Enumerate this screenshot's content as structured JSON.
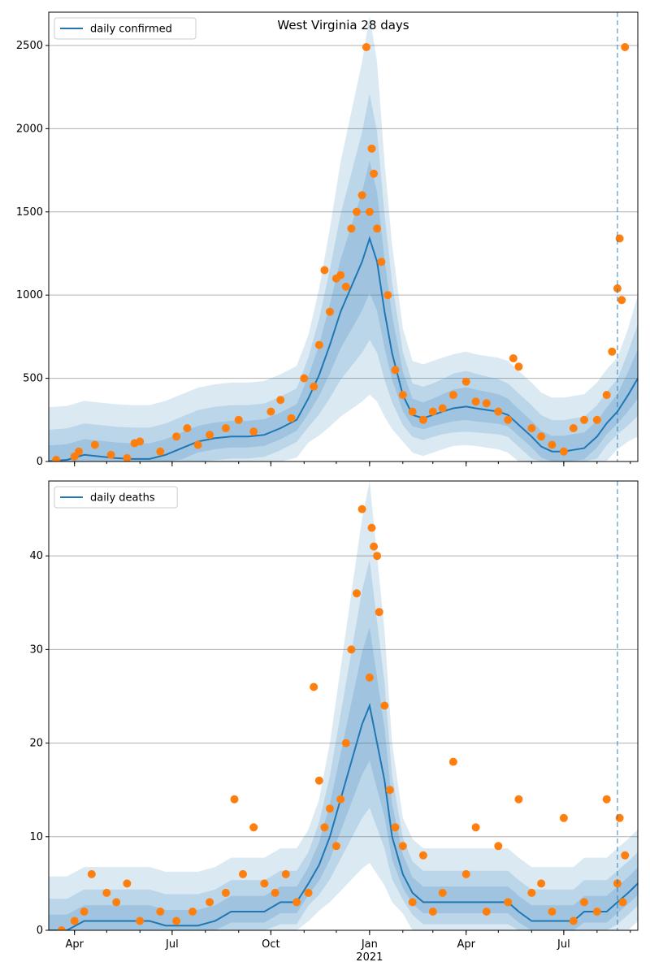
{
  "chart_data": [
    {
      "type": "line",
      "title": "West Virginia 28 days",
      "legend": {
        "labels": [
          "daily confirmed"
        ],
        "placement": "top-left"
      },
      "x_axis": {
        "start": "2020-03-08",
        "end": "2021-09-08",
        "ticks": [
          {
            "date": "2020-04-01",
            "label": "Apr"
          },
          {
            "date": "2020-07-01",
            "label": "Jul"
          },
          {
            "date": "2020-10-01",
            "label": "Oct"
          },
          {
            "date": "2021-01-01",
            "label": "Jan"
          },
          {
            "date": "2021-04-01",
            "label": "Apr"
          },
          {
            "date": "2021-07-01",
            "label": "Jul"
          }
        ]
      },
      "ylim": [
        0,
        2700
      ],
      "yticks": [
        0,
        500,
        1000,
        1500,
        2000,
        2500
      ],
      "grid": "horizontal",
      "forecast_start": "2021-08-20",
      "series": [
        {
          "name": "daily confirmed",
          "style": "line",
          "color": "#1f77b4",
          "x": [
            "2020-03-08",
            "2020-03-25",
            "2020-04-10",
            "2020-04-25",
            "2020-05-10",
            "2020-05-25",
            "2020-06-10",
            "2020-06-25",
            "2020-07-10",
            "2020-07-25",
            "2020-08-10",
            "2020-08-25",
            "2020-09-10",
            "2020-09-25",
            "2020-10-10",
            "2020-10-25",
            "2020-11-05",
            "2020-11-15",
            "2020-11-25",
            "2020-12-05",
            "2020-12-15",
            "2020-12-25",
            "2021-01-01",
            "2021-01-08",
            "2021-01-15",
            "2021-01-22",
            "2021-02-01",
            "2021-02-10",
            "2021-02-20",
            "2021-03-01",
            "2021-03-10",
            "2021-03-20",
            "2021-04-01",
            "2021-04-10",
            "2021-04-20",
            "2021-05-01",
            "2021-05-10",
            "2021-05-20",
            "2021-06-01",
            "2021-06-10",
            "2021-06-20",
            "2021-07-01",
            "2021-07-10",
            "2021-07-20",
            "2021-08-01",
            "2021-08-10",
            "2021-08-20",
            "2021-08-30",
            "2021-09-08"
          ],
          "y": [
            2,
            10,
            40,
            30,
            20,
            15,
            15,
            40,
            80,
            120,
            140,
            150,
            150,
            160,
            200,
            250,
            380,
            520,
            700,
            900,
            1050,
            1200,
            1340,
            1200,
            900,
            650,
            400,
            280,
            260,
            280,
            300,
            320,
            330,
            320,
            310,
            300,
            280,
            220,
            150,
            90,
            60,
            60,
            70,
            80,
            150,
            230,
            300,
            400,
            500
          ]
        },
        {
          "name": "",
          "style": "scatter",
          "color": "#ff7f0e",
          "x": [
            "2020-03-15",
            "2020-04-01",
            "2020-04-05",
            "2020-04-20",
            "2020-05-05",
            "2020-05-20",
            "2020-05-27",
            "2020-06-01",
            "2020-06-20",
            "2020-07-05",
            "2020-07-15",
            "2020-07-25",
            "2020-08-05",
            "2020-08-20",
            "2020-09-01",
            "2020-09-15",
            "2020-10-01",
            "2020-10-10",
            "2020-10-20",
            "2020-11-01",
            "2020-11-10",
            "2020-11-15",
            "2020-11-20",
            "2020-11-25",
            "2020-12-01",
            "2020-12-05",
            "2020-12-10",
            "2020-12-15",
            "2020-12-20",
            "2020-12-25",
            "2020-12-29",
            "2021-01-01",
            "2021-01-03",
            "2021-01-05",
            "2021-01-08",
            "2021-01-12",
            "2021-01-18",
            "2021-01-25",
            "2021-02-01",
            "2021-02-10",
            "2021-02-20",
            "2021-03-01",
            "2021-03-10",
            "2021-03-20",
            "2021-04-01",
            "2021-04-10",
            "2021-04-20",
            "2021-05-01",
            "2021-05-10",
            "2021-05-15",
            "2021-05-20",
            "2021-06-01",
            "2021-06-10",
            "2021-06-20",
            "2021-07-01",
            "2021-07-10",
            "2021-07-20",
            "2021-08-01",
            "2021-08-10",
            "2021-08-15",
            "2021-08-20",
            "2021-08-22",
            "2021-08-24",
            "2021-08-27"
          ],
          "y": [
            10,
            30,
            60,
            100,
            40,
            20,
            110,
            120,
            60,
            150,
            200,
            100,
            160,
            200,
            250,
            180,
            300,
            370,
            260,
            500,
            450,
            700,
            1150,
            900,
            1100,
            1120,
            1050,
            1400,
            1500,
            1600,
            2490,
            1500,
            1880,
            1730,
            1400,
            1200,
            1000,
            550,
            400,
            300,
            250,
            300,
            320,
            400,
            480,
            360,
            350,
            300,
            250,
            620,
            570,
            200,
            150,
            100,
            60,
            200,
            250,
            250,
            400,
            660,
            1040,
            1340,
            970,
            2490
          ]
        }
      ],
      "bands": "shaded confidence intervals around line"
    },
    {
      "type": "line",
      "title": "",
      "legend": {
        "labels": [
          "daily deaths"
        ],
        "placement": "top-left"
      },
      "x_axis": {
        "start": "2020-03-08",
        "end": "2021-09-08",
        "ticks": [
          {
            "date": "2020-04-01",
            "label": "Apr"
          },
          {
            "date": "2020-07-01",
            "label": "Jul"
          },
          {
            "date": "2020-10-01",
            "label": "Oct"
          },
          {
            "date": "2021-01-01",
            "label": "Jan"
          },
          {
            "date": "2021-04-01",
            "label": "Apr"
          },
          {
            "date": "2021-07-01",
            "label": "Jul"
          }
        ],
        "year_label": "2021"
      },
      "ylim": [
        0,
        48
      ],
      "yticks": [
        0,
        10,
        20,
        30,
        40
      ],
      "grid": "horizontal",
      "forecast_start": "2021-08-20",
      "series": [
        {
          "name": "daily deaths",
          "style": "line",
          "color": "#1f77b4",
          "x": [
            "2020-03-08",
            "2020-03-25",
            "2020-04-10",
            "2020-04-25",
            "2020-05-10",
            "2020-05-25",
            "2020-06-10",
            "2020-06-25",
            "2020-07-10",
            "2020-07-25",
            "2020-08-10",
            "2020-08-25",
            "2020-09-10",
            "2020-09-25",
            "2020-10-10",
            "2020-10-25",
            "2020-11-05",
            "2020-11-15",
            "2020-11-25",
            "2020-12-05",
            "2020-12-15",
            "2020-12-25",
            "2021-01-01",
            "2021-01-08",
            "2021-01-15",
            "2021-01-22",
            "2021-02-01",
            "2021-02-10",
            "2021-02-20",
            "2021-03-01",
            "2021-03-10",
            "2021-03-20",
            "2021-04-01",
            "2021-04-10",
            "2021-04-20",
            "2021-05-01",
            "2021-05-10",
            "2021-05-20",
            "2021-06-01",
            "2021-06-10",
            "2021-06-20",
            "2021-07-01",
            "2021-07-10",
            "2021-07-20",
            "2021-08-01",
            "2021-08-10",
            "2021-08-20",
            "2021-08-30",
            "2021-09-08"
          ],
          "y": [
            0,
            0,
            1,
            1,
            1,
            1,
            1,
            0.5,
            0.5,
            0.5,
            1,
            2,
            2,
            2,
            3,
            3,
            5,
            7,
            10,
            14,
            18,
            22,
            24,
            20,
            16,
            10,
            6,
            4,
            3,
            3,
            3,
            3,
            3,
            3,
            3,
            3,
            3,
            2,
            1,
            1,
            1,
            1,
            1,
            2,
            2,
            2,
            3,
            4,
            5
          ]
        },
        {
          "name": "",
          "style": "scatter",
          "color": "#ff7f0e",
          "x": [
            "2020-03-20",
            "2020-04-01",
            "2020-04-10",
            "2020-04-17",
            "2020-05-01",
            "2020-05-10",
            "2020-05-20",
            "2020-06-01",
            "2020-06-20",
            "2020-07-05",
            "2020-07-20",
            "2020-08-05",
            "2020-08-20",
            "2020-08-28",
            "2020-09-05",
            "2020-09-15",
            "2020-09-25",
            "2020-10-05",
            "2020-10-15",
            "2020-10-25",
            "2020-11-05",
            "2020-11-10",
            "2020-11-15",
            "2020-11-20",
            "2020-11-25",
            "2020-12-01",
            "2020-12-05",
            "2020-12-10",
            "2020-12-15",
            "2020-12-20",
            "2020-12-25",
            "2021-01-01",
            "2021-01-03",
            "2021-01-05",
            "2021-01-08",
            "2021-01-10",
            "2021-01-15",
            "2021-01-20",
            "2021-01-25",
            "2021-02-01",
            "2021-02-10",
            "2021-02-20",
            "2021-03-01",
            "2021-03-10",
            "2021-03-20",
            "2021-04-01",
            "2021-04-10",
            "2021-04-20",
            "2021-05-01",
            "2021-05-10",
            "2021-05-20",
            "2021-06-01",
            "2021-06-10",
            "2021-06-20",
            "2021-07-01",
            "2021-07-10",
            "2021-07-20",
            "2021-08-01",
            "2021-08-10",
            "2021-08-20",
            "2021-08-22",
            "2021-08-25",
            "2021-08-27"
          ],
          "y": [
            0,
            1,
            2,
            6,
            4,
            3,
            5,
            1,
            2,
            1,
            2,
            3,
            4,
            14,
            6,
            11,
            5,
            4,
            6,
            3,
            4,
            26,
            16,
            11,
            13,
            9,
            14,
            20,
            30,
            36,
            45,
            27,
            43,
            41,
            40,
            34,
            24,
            15,
            11,
            9,
            3,
            8,
            2,
            4,
            18,
            6,
            11,
            2,
            9,
            3,
            14,
            4,
            5,
            2,
            12,
            1,
            3,
            2,
            14,
            5,
            12,
            3,
            8
          ]
        }
      ],
      "bands": "shaded confidence intervals around line"
    }
  ]
}
